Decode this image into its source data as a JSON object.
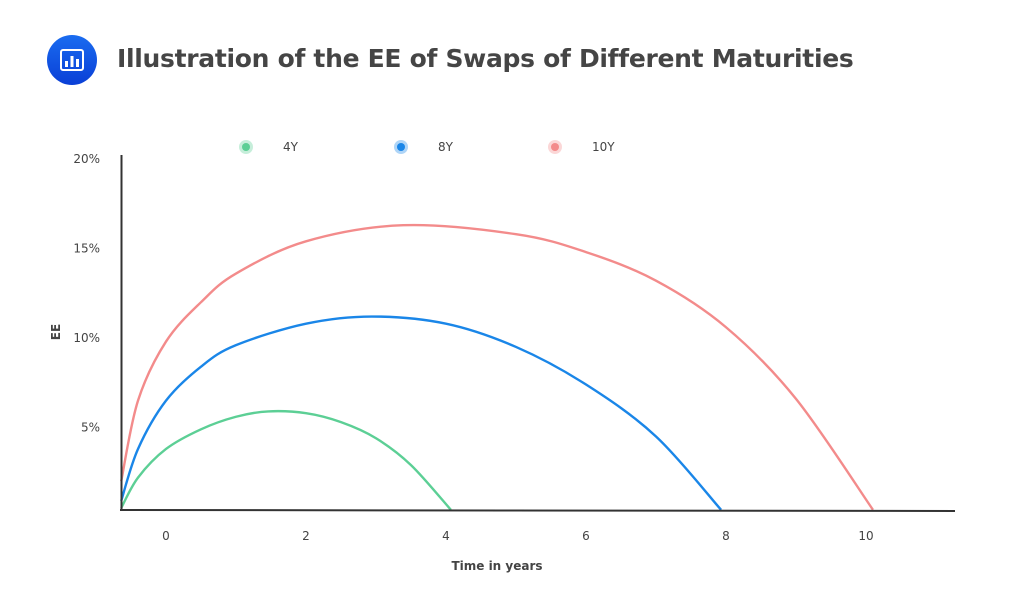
{
  "title": "Illustration of the EE of Swaps of Different Maturities",
  "header_icon": "bar-chart-icon",
  "chart_data": {
    "type": "line",
    "title": "Illustration of the EE of Swaps of Different Maturities",
    "xlabel": "Time in years",
    "ylabel": "EE",
    "x_ticks": [
      "0",
      "2",
      "4",
      "6",
      "8",
      "10"
    ],
    "x_tick_values": [
      0,
      2,
      4,
      6,
      8,
      10
    ],
    "y_ticks": [
      "5%",
      "10%",
      "15%",
      "20%"
    ],
    "y_tick_values": [
      5,
      10,
      15,
      20
    ],
    "grid": false,
    "legend_position": "top",
    "series": [
      {
        "name": "4Y",
        "color": "#5ccf95",
        "points": [
          [
            -0.64,
            0.5
          ],
          [
            -0.4,
            2.2
          ],
          [
            0,
            3.8
          ],
          [
            0.5,
            4.9
          ],
          [
            1,
            5.6
          ],
          [
            1.46,
            5.9
          ],
          [
            2,
            5.8
          ],
          [
            2.5,
            5.3
          ],
          [
            3,
            4.4
          ],
          [
            3.5,
            2.9
          ],
          [
            4.07,
            0.4
          ]
        ]
      },
      {
        "name": "8Y",
        "color": "#1a86e8",
        "points": [
          [
            -0.64,
            0.9
          ],
          [
            -0.4,
            3.8
          ],
          [
            0,
            6.5
          ],
          [
            0.5,
            8.4
          ],
          [
            1,
            9.6
          ],
          [
            2,
            10.8
          ],
          [
            2.94,
            11.2
          ],
          [
            4,
            10.8
          ],
          [
            5,
            9.5
          ],
          [
            6,
            7.4
          ],
          [
            7,
            4.5
          ],
          [
            7.93,
            0.4
          ]
        ]
      },
      {
        "name": "10Y",
        "color": "#f38b8b",
        "points": [
          [
            -0.64,
            2
          ],
          [
            -0.4,
            6.5
          ],
          [
            0,
            9.8
          ],
          [
            0.5,
            12
          ],
          [
            1,
            13.6
          ],
          [
            2,
            15.4
          ],
          [
            3.39,
            16.3
          ],
          [
            5,
            15.8
          ],
          [
            6,
            14.8
          ],
          [
            7,
            13.2
          ],
          [
            8,
            10.6
          ],
          [
            9,
            6.6
          ],
          [
            10.1,
            0.4
          ]
        ]
      }
    ]
  }
}
